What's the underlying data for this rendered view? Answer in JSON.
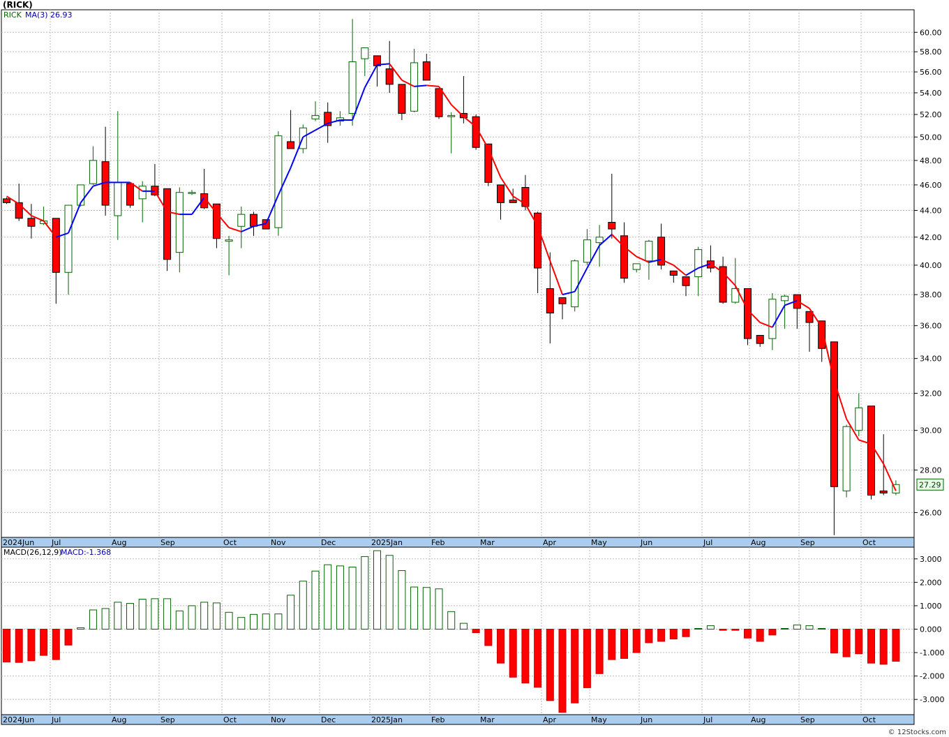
{
  "ticker_title": "(RICK)",
  "credit": "© 12Stocks.com",
  "price_legend": {
    "symbol": "RICK",
    "ma_label": "MA(3)",
    "ma_value": "26.93"
  },
  "macd_legend": {
    "label": "MACD(26,12,9)",
    "value_label": "MACD:-1.368"
  },
  "last_price_tag": "27.29",
  "colors": {
    "up": "#006400",
    "down": "#ff0000",
    "ma_up": "#0000ff",
    "ma_down": "#ff0000",
    "axis_band": "#aaccee",
    "grid": "#bbbbbb"
  },
  "chart_data": [
    {
      "type": "candlestick",
      "name": "price",
      "scale": "log",
      "grid": true,
      "y_ticks": [
        "60.00",
        "58.00",
        "56.00",
        "54.00",
        "52.00",
        "50.00",
        "48.00",
        "46.00",
        "44.00",
        "42.00",
        "40.00",
        "38.00",
        "36.00",
        "34.00",
        "32.00",
        "30.00",
        "28.00",
        "26.00"
      ],
      "x_labels": [
        "2024Jun",
        "Jul",
        "Aug",
        "Sep",
        "Oct",
        "Nov",
        "Dec",
        "2025Jan",
        "Feb",
        "Mar",
        "Apr",
        "May",
        "Jun",
        "Jul",
        "Aug",
        "Sep",
        "Oct"
      ],
      "ylim": [
        24.9,
        62.4
      ],
      "ohlc": [
        [
          44.9,
          45.0,
          44.5,
          44.6
        ],
        [
          44.6,
          46.1,
          43.2,
          43.4
        ],
        [
          43.4,
          44.5,
          41.9,
          42.8
        ],
        [
          43.0,
          44.3,
          42.9,
          43.2
        ],
        [
          43.4,
          43.4,
          37.4,
          39.5
        ],
        [
          39.5,
          44.4,
          38.0,
          44.4
        ],
        [
          44.4,
          46.0,
          44.3,
          46.0
        ],
        [
          46.1,
          49.2,
          46.0,
          48.0
        ],
        [
          47.9,
          50.9,
          43.6,
          44.4
        ],
        [
          43.6,
          52.3,
          41.8,
          46.2
        ],
        [
          46.1,
          46.1,
          44.2,
          44.4
        ],
        [
          44.9,
          46.3,
          43.1,
          45.9
        ],
        [
          45.9,
          47.7,
          45.1,
          45.2
        ],
        [
          45.7,
          45.7,
          39.6,
          40.4
        ],
        [
          40.9,
          45.8,
          39.5,
          45.4
        ],
        [
          45.4,
          45.6,
          45.2,
          45.4
        ],
        [
          45.3,
          47.3,
          44.1,
          44.2
        ],
        [
          44.5,
          44.5,
          41.2,
          41.9
        ],
        [
          41.7,
          42.1,
          39.3,
          41.8
        ],
        [
          42.8,
          44.3,
          41.2,
          43.7
        ],
        [
          43.7,
          43.9,
          42.1,
          42.8
        ],
        [
          43.3,
          43.3,
          42.6,
          42.6
        ],
        [
          42.7,
          50.5,
          42.1,
          50.1
        ],
        [
          49.6,
          52.4,
          49.1,
          49.0
        ],
        [
          49.0,
          51.1,
          48.6,
          50.8
        ],
        [
          51.6,
          53.2,
          51.4,
          51.9
        ],
        [
          52.2,
          53.1,
          49.5,
          51.0
        ],
        [
          51.4,
          52.3,
          51.0,
          51.7
        ],
        [
          52.1,
          61.4,
          51.0,
          57.0
        ],
        [
          57.3,
          58.3,
          55.6,
          58.4
        ],
        [
          57.6,
          57.6,
          54.6,
          56.6
        ],
        [
          56.3,
          59.1,
          54.0,
          54.8
        ],
        [
          54.8,
          54.8,
          51.5,
          52.1
        ],
        [
          52.3,
          58.3,
          52.2,
          56.9
        ],
        [
          57.0,
          57.8,
          55.4,
          55.2
        ],
        [
          54.4,
          54.4,
          51.6,
          51.8
        ],
        [
          51.8,
          52.2,
          48.6,
          51.9
        ],
        [
          52.1,
          55.6,
          51.2,
          51.7
        ],
        [
          51.8,
          52.0,
          48.9,
          49.1
        ],
        [
          49.4,
          49.4,
          45.9,
          46.2
        ],
        [
          46.0,
          46.0,
          43.3,
          44.6
        ],
        [
          44.8,
          45.7,
          44.6,
          44.6
        ],
        [
          45.8,
          46.8,
          44.0,
          44.3
        ],
        [
          43.8,
          43.9,
          38.1,
          39.8
        ],
        [
          38.4,
          40.9,
          34.9,
          36.8
        ],
        [
          37.8,
          37.8,
          36.4,
          37.4
        ],
        [
          37.2,
          40.4,
          36.9,
          40.3
        ],
        [
          40.2,
          42.6,
          40.0,
          41.8
        ],
        [
          41.6,
          42.9,
          39.9,
          42.0
        ],
        [
          43.1,
          46.9,
          41.9,
          42.6
        ],
        [
          42.1,
          43.1,
          38.8,
          39.1
        ],
        [
          39.7,
          40.0,
          39.5,
          40.1
        ],
        [
          40.3,
          41.8,
          39.0,
          41.7
        ],
        [
          42.0,
          43.0,
          39.7,
          40.0
        ],
        [
          39.6,
          39.6,
          38.8,
          39.3
        ],
        [
          39.2,
          39.2,
          37.9,
          38.6
        ],
        [
          39.2,
          41.3,
          37.9,
          41.1
        ],
        [
          40.3,
          41.4,
          39.5,
          39.8
        ],
        [
          39.9,
          40.6,
          37.4,
          37.5
        ],
        [
          37.5,
          40.5,
          37.4,
          38.4
        ],
        [
          38.4,
          38.4,
          34.8,
          35.2
        ],
        [
          35.4,
          35.4,
          34.7,
          34.9
        ],
        [
          35.2,
          38.1,
          34.5,
          37.7
        ],
        [
          37.6,
          38.0,
          35.8,
          37.9
        ],
        [
          38.0,
          38.0,
          35.8,
          37.1
        ],
        [
          36.9,
          36.9,
          34.4,
          36.2
        ],
        [
          36.3,
          36.3,
          33.8,
          34.6
        ],
        [
          35.0,
          35.0,
          25.0,
          27.2
        ],
        [
          27.0,
          30.3,
          26.7,
          30.2
        ],
        [
          30.0,
          32.0,
          29.7,
          31.2
        ],
        [
          31.3,
          31.3,
          26.6,
          26.8
        ],
        [
          27.0,
          29.8,
          26.8,
          26.9
        ],
        [
          26.9,
          27.5,
          26.8,
          27.3
        ]
      ],
      "ma3": [
        45.1,
        44.5,
        43.6,
        43.2,
        42.0,
        42.3,
        44.6,
        45.9,
        46.2,
        46.2,
        46.2,
        45.5,
        45.5,
        43.9,
        43.7,
        43.7,
        45.0,
        43.8,
        42.7,
        42.4,
        42.8,
        43.0,
        45.2,
        47.4,
        50.0,
        50.6,
        51.2,
        51.5,
        51.5,
        54.5,
        56.7,
        56.8,
        55.2,
        54.6,
        54.7,
        54.6,
        52.9,
        51.8,
        50.9,
        49.0,
        46.6,
        45.1,
        44.5,
        42.8,
        40.3,
        38.0,
        38.2,
        39.8,
        41.4,
        42.2,
        41.3,
        40.6,
        40.2,
        40.4,
        40.0,
        39.3,
        39.8,
        40.1,
        39.5,
        38.6,
        37.0,
        36.2,
        35.9,
        37.3,
        37.6,
        37.1,
        35.9,
        32.7,
        30.6,
        29.5,
        29.3,
        28.3,
        27.0
      ],
      "ma_final": "26.93"
    },
    {
      "type": "bar",
      "name": "macd",
      "grid": true,
      "y_ticks": [
        "3.000",
        "2.000",
        "1.000",
        "0.000",
        "-1.000",
        "-2.000",
        "-3.000"
      ],
      "x_labels": [
        "2024Jun",
        "Jul",
        "Aug",
        "Sep",
        "Oct",
        "Nov",
        "Dec",
        "2025Jan",
        "Feb",
        "Mar",
        "Apr",
        "May",
        "Jun",
        "Jul",
        "Aug",
        "Sep",
        "Oct"
      ],
      "ylim": [
        -3.65,
        3.5
      ],
      "values": [
        -1.4,
        -1.42,
        -1.35,
        -1.12,
        -1.3,
        -0.68,
        0.06,
        0.82,
        0.88,
        1.15,
        1.1,
        1.28,
        1.3,
        1.3,
        0.78,
        1.0,
        1.15,
        1.12,
        0.72,
        0.5,
        0.63,
        0.65,
        0.65,
        1.45,
        2.05,
        2.48,
        2.75,
        2.7,
        2.65,
        3.1,
        3.35,
        3.15,
        2.5,
        1.8,
        1.78,
        1.72,
        0.75,
        0.25,
        -0.15,
        -0.7,
        -1.45,
        -2.05,
        -2.3,
        -2.48,
        -3.05,
        -3.55,
        -3.15,
        -2.5,
        -1.9,
        -1.3,
        -1.25,
        -1.0,
        -0.58,
        -0.52,
        -0.42,
        -0.32,
        0.03,
        0.15,
        -0.05,
        -0.05,
        -0.38,
        -0.52,
        -0.25,
        0.03,
        0.18,
        0.15,
        0.03,
        -1.02,
        -1.18,
        -1.05,
        -1.45,
        -1.5,
        -1.37
      ],
      "macd_value": -1.368
    }
  ]
}
